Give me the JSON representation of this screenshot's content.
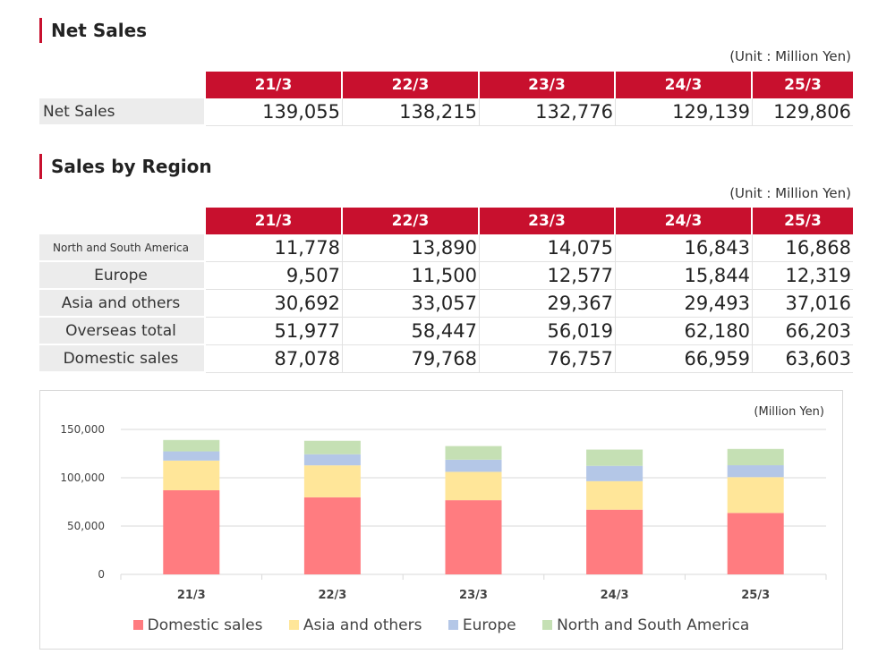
{
  "net_sales_section": {
    "title": "Net Sales",
    "unit": "(Unit : Million Yen)",
    "headers": [
      "21/3",
      "22/3",
      "23/3",
      "24/3",
      "25/3"
    ],
    "row_label": "Net Sales",
    "values": [
      "139,055",
      "138,215",
      "132,776",
      "129,139",
      "129,806"
    ]
  },
  "region_section": {
    "title": "Sales by Region",
    "unit": "(Unit : Million Yen)",
    "headers": [
      "21/3",
      "22/3",
      "23/3",
      "24/3",
      "25/3"
    ],
    "rows": [
      {
        "label": "North and South America",
        "values": [
          "11,778",
          "13,890",
          "14,075",
          "16,843",
          "16,868"
        ]
      },
      {
        "label": "Europe",
        "values": [
          "9,507",
          "11,500",
          "12,577",
          "15,844",
          "12,319"
        ]
      },
      {
        "label": "Asia and others",
        "values": [
          "30,692",
          "33,057",
          "29,367",
          "29,493",
          "37,016"
        ]
      },
      {
        "label": "Overseas total",
        "values": [
          "51,977",
          "58,447",
          "56,019",
          "62,180",
          "66,203"
        ]
      },
      {
        "label": "Domestic sales",
        "values": [
          "87,078",
          "79,768",
          "76,757",
          "66,959",
          "63,603"
        ]
      }
    ]
  },
  "chart_data": {
    "type": "bar",
    "stacked": true,
    "title": "",
    "unit_label": "(Million Yen)",
    "categories": [
      "21/3",
      "22/3",
      "23/3",
      "24/3",
      "25/3"
    ],
    "series": [
      {
        "name": "Domestic sales",
        "color": "#ff7c80",
        "values": [
          87078,
          79768,
          76757,
          66959,
          63603
        ]
      },
      {
        "name": "Asia and others",
        "color": "#ffe699",
        "values": [
          30692,
          33057,
          29367,
          29493,
          37016
        ]
      },
      {
        "name": "Europe",
        "color": "#b4c7e7",
        "values": [
          9507,
          11500,
          12577,
          15844,
          12319
        ]
      },
      {
        "name": "North and South America",
        "color": "#c5e0b4",
        "values": [
          11778,
          13890,
          14075,
          16843,
          16868
        ]
      }
    ],
    "ylim": [
      0,
      150000
    ],
    "yticks": [
      0,
      50000,
      100000,
      150000
    ],
    "ytick_labels": [
      "0",
      "50,000",
      "100,000",
      "150,000"
    ],
    "legend_position": "bottom",
    "grid": true
  },
  "colors": {
    "accent": "#c8102e",
    "label_bg": "#ececec",
    "gridline": "#d9d9d9"
  }
}
